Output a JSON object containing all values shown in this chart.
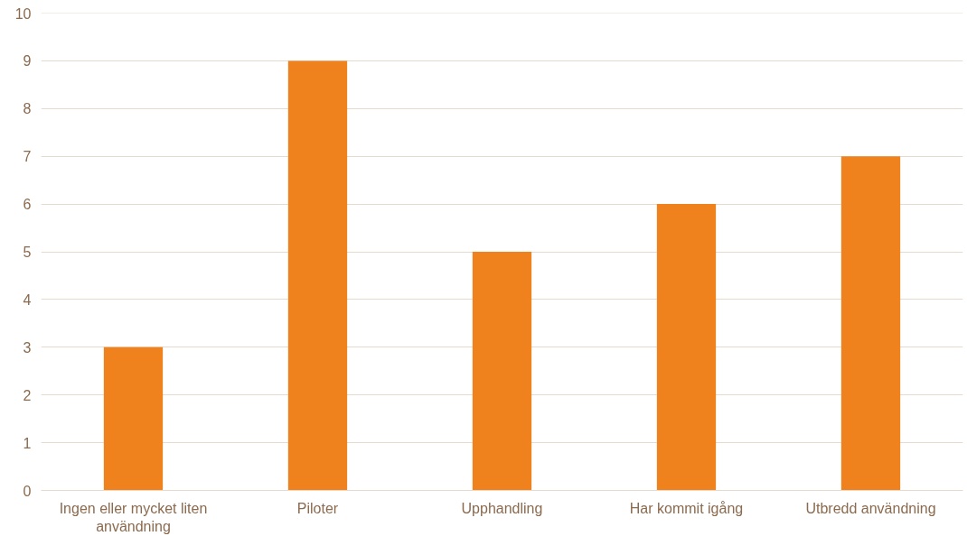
{
  "chart_data": {
    "type": "bar",
    "categories": [
      "Ingen eller mycket liten användning",
      "Piloter",
      "Upphandling",
      "Har kommit igång",
      "Utbredd användning"
    ],
    "values": [
      3,
      9,
      5,
      6,
      7
    ],
    "color": "#f0821e",
    "ylim": [
      0,
      10
    ],
    "yticks": [
      0,
      1,
      2,
      3,
      4,
      5,
      6,
      7,
      8,
      9,
      10
    ],
    "grid": "y"
  }
}
